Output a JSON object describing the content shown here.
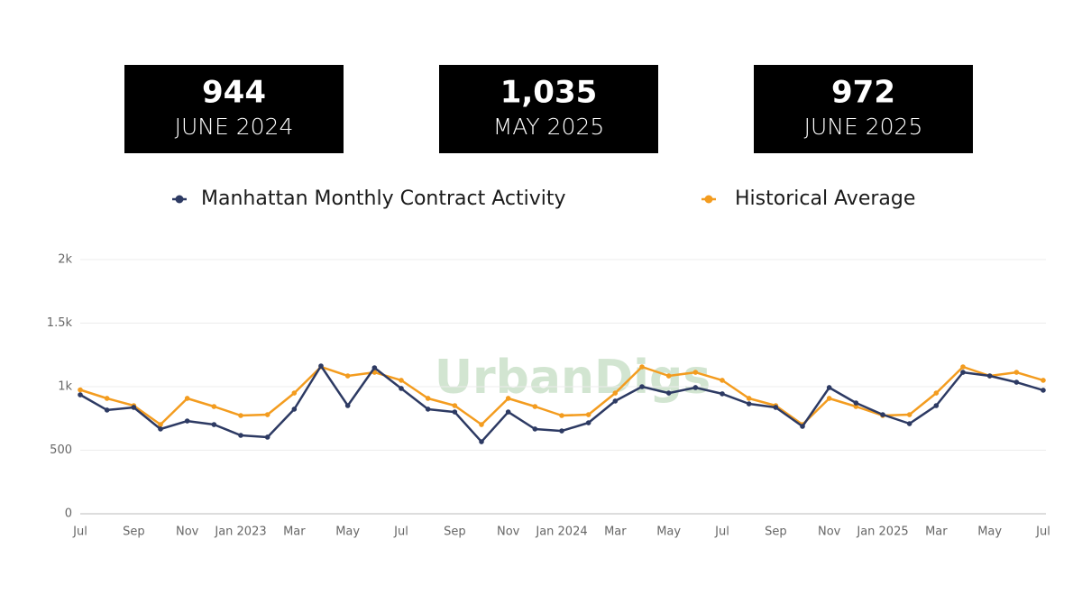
{
  "cards": [
    {
      "value": "944",
      "label": "JUNE 2024"
    },
    {
      "value": "1,035",
      "label": "MAY 2025"
    },
    {
      "value": "972",
      "label": "JUNE 2025"
    }
  ],
  "chart_data": {
    "type": "line",
    "watermark": "UrbanDigs",
    "legend": "top",
    "grid": true,
    "categories": [
      "Jul",
      null,
      "Sep",
      null,
      "Nov",
      null,
      "Jan 2023",
      null,
      "Mar",
      null,
      "May",
      null,
      "Jul",
      null,
      "Sep",
      null,
      "Nov",
      null,
      "Jan 2024",
      null,
      "Mar",
      null,
      "May",
      null,
      "Jul",
      null,
      "Sep",
      null,
      "Nov",
      null,
      "Jan 2025",
      null,
      "Mar",
      null,
      "May",
      null,
      "Jul"
    ],
    "series": [
      {
        "name": "Manhattan Monthly Contract Activity",
        "color": "#2d3a63",
        "values": [
          936,
          816,
          837,
          667,
          730,
          702,
          617,
          603,
          823,
          1163,
          851,
          1149,
          986,
          823,
          801,
          567,
          801,
          667,
          652,
          716,
          887,
          1000,
          950,
          993,
          944,
          865,
          837,
          688,
          993,
          872,
          780,
          709,
          851,
          1113,
          1085,
          1035,
          972
        ]
      },
      {
        "name": "Historical Average",
        "color": "#f39c1f",
        "values": [
          975,
          908,
          851,
          702,
          908,
          844,
          773,
          780,
          950,
          1156,
          1085,
          1113,
          1050,
          908,
          851,
          702,
          908,
          844,
          773,
          780,
          950,
          1156,
          1085,
          1113,
          1050,
          908,
          851,
          702,
          908,
          844,
          773,
          780,
          950,
          1156,
          1085,
          1113,
          1050
        ]
      }
    ],
    "ylim": [
      0,
      2000
    ],
    "yticks": [
      0,
      500,
      {
        "value": 1000,
        "label": "1k"
      },
      {
        "value": 1500,
        "label": "1.5k"
      },
      {
        "value": 2000,
        "label": "2k"
      }
    ]
  }
}
